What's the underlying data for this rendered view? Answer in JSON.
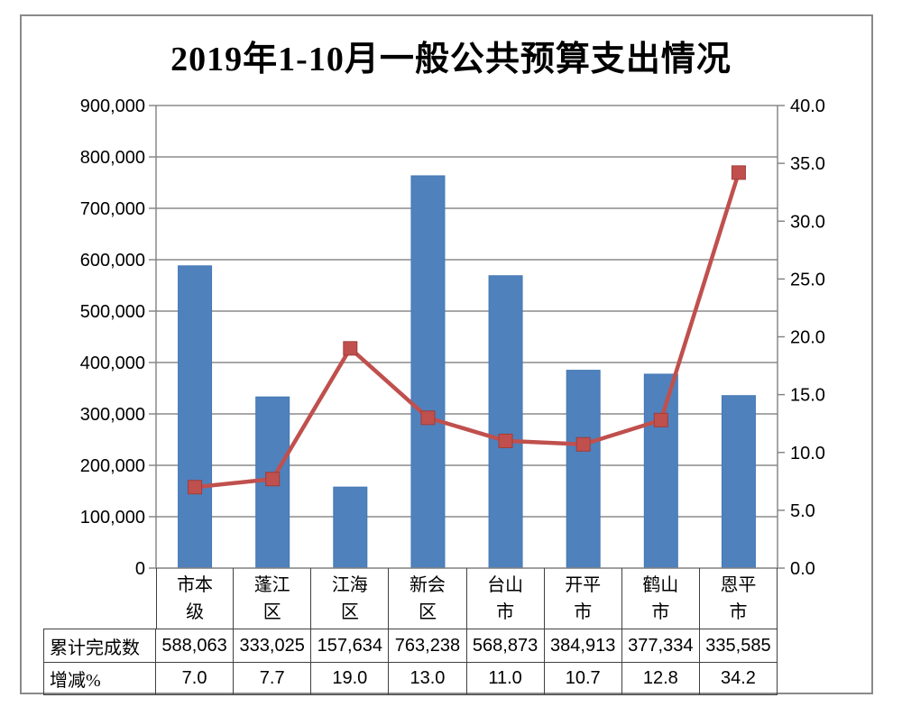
{
  "chart_data": {
    "type": "combo-bar-line",
    "title": "2019年1-10月一般公共预算支出情况",
    "categories": [
      "市本级",
      "蓬江区",
      "江海区",
      "新会区",
      "台山市",
      "开平市",
      "鹤山市",
      "恩平市"
    ],
    "series": [
      {
        "name": "累计完成数",
        "chart": "bar",
        "axis": "left",
        "color": "#4F81BD",
        "values": [
          588063,
          333025,
          157634,
          763238,
          568873,
          384913,
          377334,
          335585
        ]
      },
      {
        "name": "增减%",
        "chart": "line",
        "axis": "right",
        "color": "#C0504D",
        "marker": "square",
        "values": [
          7.0,
          7.7,
          19.0,
          13.0,
          11.0,
          10.7,
          12.8,
          34.2
        ]
      }
    ],
    "left_axis": {
      "min": 0,
      "max": 900000,
      "step": 100000,
      "tick_labels": [
        "0",
        "100,000",
        "200,000",
        "300,000",
        "400,000",
        "500,000",
        "600,000",
        "700,000",
        "800,000",
        "900,000"
      ]
    },
    "right_axis": {
      "min": 0,
      "max": 40,
      "step": 5,
      "tick_labels": [
        "0.0",
        "5.0",
        "10.0",
        "15.0",
        "20.0",
        "25.0",
        "30.0",
        "35.0",
        "40.0"
      ]
    },
    "grid": true,
    "legend_position": "none"
  },
  "table": {
    "rows": [
      {
        "label": "累计完成数",
        "values": [
          "588,063",
          "333,025",
          "157,634",
          "763,238",
          "568,873",
          "384,913",
          "377,334",
          "335,585"
        ]
      },
      {
        "label": "增减%",
        "values": [
          "7.0",
          "7.7",
          "19.0",
          "13.0",
          "11.0",
          "10.7",
          "12.8",
          "34.2"
        ]
      }
    ]
  },
  "colors": {
    "bar_fill": "#4F81BD",
    "bar_edge": "#4478B4",
    "line": "#C0504D",
    "marker_fill": "#C0504D",
    "marker_edge": "#A13C39",
    "gridline": "#8C8C8C",
    "axis": "#808080",
    "table_border": "#404040",
    "frame": "#8A8A8A"
  }
}
